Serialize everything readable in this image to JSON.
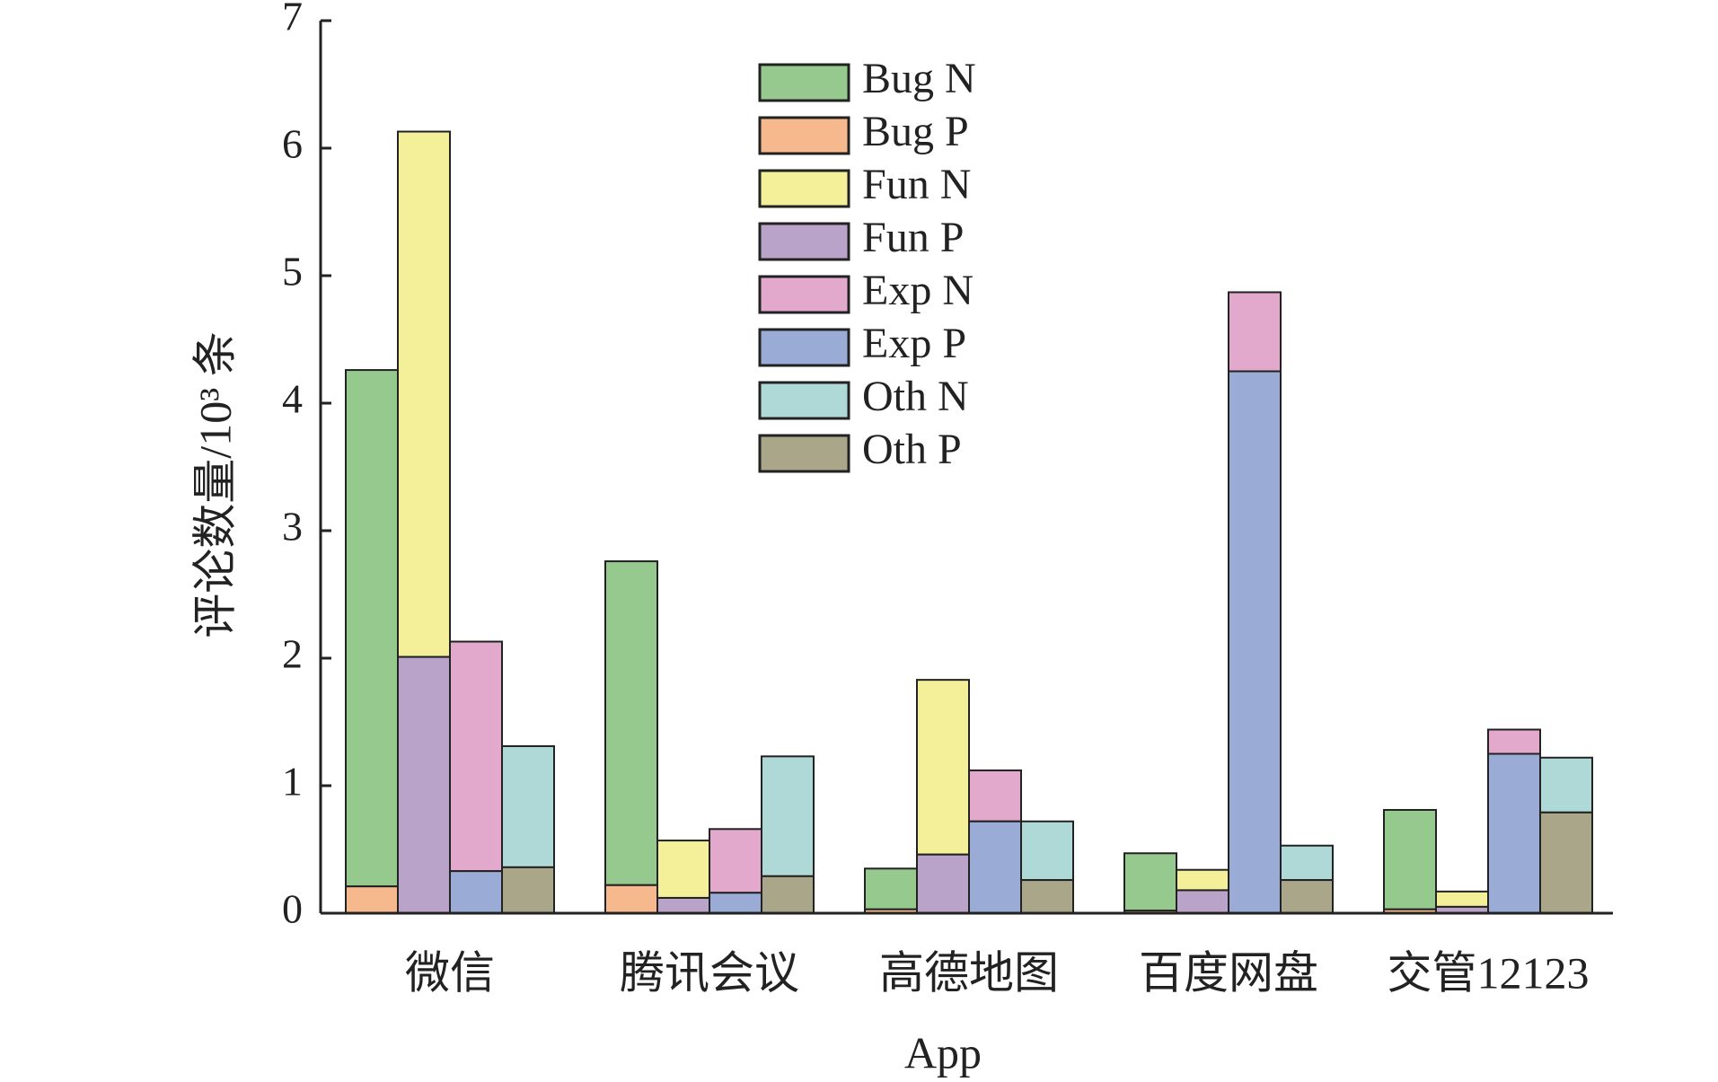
{
  "chart_data": {
    "type": "bar",
    "x_label": "App",
    "y_label": "评论数量/10³ 条",
    "categories": [
      "微信",
      "腾讯会议",
      "高德地图",
      "百度网盘",
      "交管12123"
    ],
    "series": [
      {
        "name": "Bug N",
        "color": "#96c98e",
        "values": [
          4.05,
          2.54,
          0.32,
          0.45,
          0.78
        ]
      },
      {
        "name": "Bug P",
        "color": "#f6b98e",
        "values": [
          0.21,
          0.22,
          0.03,
          0.02,
          0.03
        ]
      },
      {
        "name": "Fun N",
        "color": "#f4f09a",
        "values": [
          4.12,
          0.45,
          1.37,
          0.16,
          0.12
        ]
      },
      {
        "name": "Fun P",
        "color": "#b9a3c8",
        "values": [
          2.01,
          0.12,
          0.46,
          0.18,
          0.05
        ]
      },
      {
        "name": "Exp N",
        "color": "#e2a9cd",
        "values": [
          1.8,
          0.5,
          0.4,
          0.62,
          0.19
        ]
      },
      {
        "name": "Exp P",
        "color": "#9aabd5",
        "values": [
          0.33,
          0.16,
          0.72,
          4.25,
          1.25
        ]
      },
      {
        "name": "Oth N",
        "color": "#afd9d6",
        "values": [
          0.95,
          0.94,
          0.46,
          0.27,
          0.43
        ]
      },
      {
        "name": "Oth P",
        "color": "#a9a68a",
        "values": [
          0.36,
          0.29,
          0.26,
          0.26,
          0.79
        ]
      }
    ],
    "ylim": [
      0,
      7
    ],
    "yticks": [
      0,
      1,
      2,
      3,
      4,
      5,
      6,
      7
    ]
  }
}
